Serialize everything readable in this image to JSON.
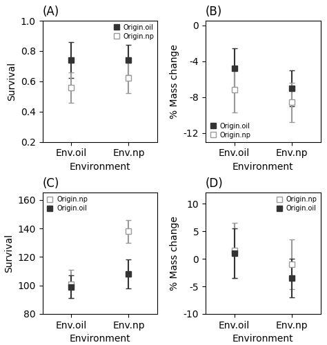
{
  "chart_data": [
    {
      "type": "scatter",
      "title": "(A)",
      "xlabel": "Environment",
      "ylabel": "Survival",
      "categories": [
        "Env.oil",
        "Env.np"
      ],
      "ylim": [
        0.2,
        1.0
      ],
      "yticks": [
        0.2,
        0.4,
        0.6,
        0.8,
        1.0
      ],
      "legend": "upper right",
      "series": [
        {
          "name": "Origin.oil",
          "color": "#333333",
          "marker": "square",
          "values": [
            0.74,
            0.74
          ],
          "yerr": [
            0.12,
            0.1
          ]
        },
        {
          "name": "Origin.np",
          "color": "#999999",
          "marker": "open-square",
          "values": [
            0.56,
            0.62
          ],
          "yerr": [
            0.1,
            0.1
          ]
        }
      ]
    },
    {
      "type": "scatter",
      "title": "(B)",
      "xlabel": "Environment",
      "ylabel": "% Mass change",
      "categories": [
        "Env.oil",
        "Env.np"
      ],
      "ylim": [
        -13,
        0.5
      ],
      "yticks": [
        0,
        -4,
        -8,
        -12
      ],
      "legend": "lower left",
      "series": [
        {
          "name": "Origin.oil",
          "color": "#333333",
          "marker": "square",
          "values": [
            -4.8,
            -7.0
          ],
          "yerr": [
            2.2,
            2.0
          ]
        },
        {
          "name": "Origin.np",
          "color": "#999999",
          "marker": "open-square",
          "values": [
            -7.2,
            -8.6
          ],
          "yerr": [
            2.5,
            2.2
          ]
        }
      ]
    },
    {
      "type": "scatter",
      "title": "(C)",
      "xlabel": "Environment",
      "ylabel": "Survival",
      "categories": [
        "Env.oil",
        "Env.np"
      ],
      "ylim": [
        80,
        165
      ],
      "yticks": [
        80,
        100,
        120,
        140,
        160
      ],
      "legend": "upper left",
      "series": [
        {
          "name": "Origin.np",
          "color": "#999999",
          "marker": "open-square",
          "values": [
            101,
            138
          ],
          "yerr": [
            10,
            8
          ]
        },
        {
          "name": "Origin.oil",
          "color": "#333333",
          "marker": "square",
          "values": [
            99,
            108
          ],
          "yerr": [
            8,
            10
          ]
        }
      ]
    },
    {
      "type": "scatter",
      "title": "(D)",
      "xlabel": "Environment",
      "ylabel": "% Mass change",
      "categories": [
        "Env.oil",
        "Env.np"
      ],
      "ylim": [
        -10,
        12
      ],
      "yticks": [
        -10,
        -5,
        0,
        5,
        10
      ],
      "legend": "upper right",
      "series": [
        {
          "name": "Origin.np",
          "color": "#999999",
          "marker": "open-square",
          "values": [
            1.5,
            -1.0
          ],
          "yerr": [
            5.0,
            4.5
          ]
        },
        {
          "name": "Origin.oil",
          "color": "#333333",
          "marker": "square",
          "values": [
            1.0,
            -3.5
          ],
          "yerr": [
            4.5,
            3.5
          ]
        }
      ]
    }
  ]
}
